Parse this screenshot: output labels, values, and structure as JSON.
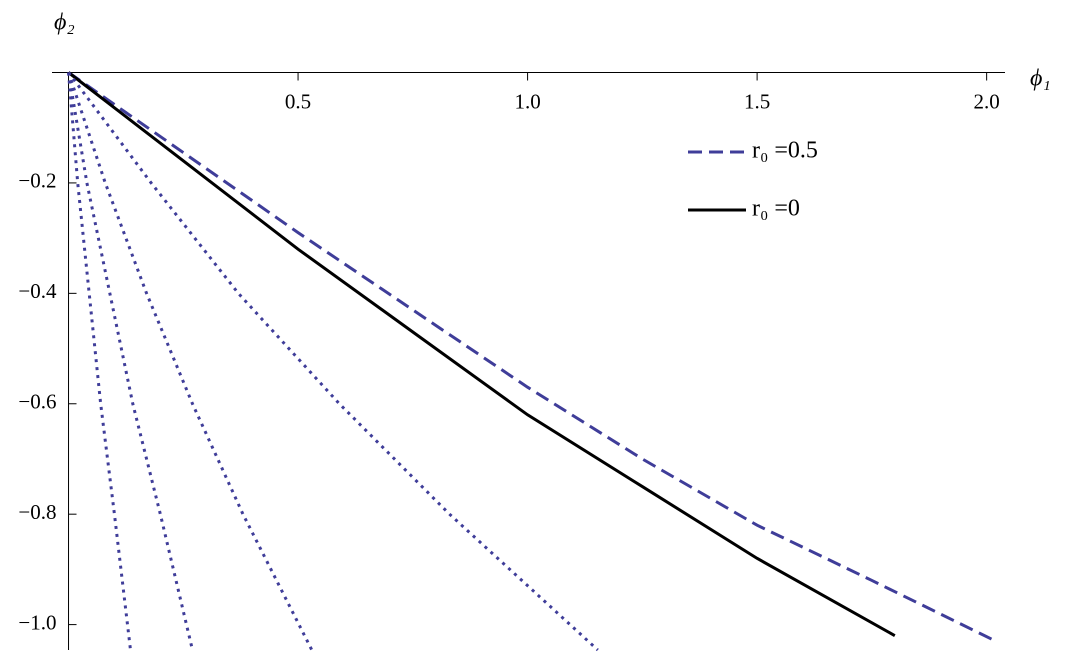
{
  "chart_data": {
    "type": "line",
    "xlabel": "ϕ₁",
    "ylabel": "ϕ₂",
    "xlim": [
      -0.036,
      2.04
    ],
    "ylim": [
      -1.046,
      0
    ],
    "xticks": [
      0.5,
      {
        "value": 1,
        "label": "1.0"
      },
      1.5,
      {
        "value": 2,
        "label": "2.0"
      }
    ],
    "yticks": [
      {
        "value": -0.2,
        "label": "−0.2"
      },
      {
        "value": -0.4,
        "label": "−0.4"
      },
      {
        "value": -0.6,
        "label": "−0.6"
      },
      {
        "value": -0.8,
        "label": "−0.8"
      },
      {
        "value": -1,
        "label": "−1.0"
      }
    ],
    "legend": "upper right",
    "series": [
      {
        "name": "r₀ =0.5",
        "color": "#3f3d99",
        "dash": "dashed",
        "x": [
          0,
          0.25,
          0.5,
          0.75,
          1.0,
          1.25,
          1.5,
          1.75,
          2.02
        ],
        "values": [
          0,
          -0.145,
          -0.29,
          -0.43,
          -0.57,
          -0.7,
          -0.82,
          -0.92,
          -1.03
        ]
      },
      {
        "name": "r₀ =0",
        "color": "#000000",
        "dash": "solid",
        "x": [
          0,
          0.25,
          0.5,
          0.75,
          1.0,
          1.25,
          1.5,
          1.8
        ],
        "values": [
          0,
          -0.16,
          -0.32,
          -0.47,
          -0.62,
          -0.75,
          -0.88,
          -1.02
        ]
      },
      {
        "color": "#3f3d99",
        "dash": "dotted",
        "x": [
          0,
          0.18,
          0.37,
          0.59,
          0.83,
          1.153
        ],
        "values": [
          0,
          -0.2,
          -0.4,
          -0.6,
          -0.8,
          -1.046
        ]
      },
      {
        "color": "#3f3d99",
        "dash": "dotted",
        "x": [
          0,
          0.08,
          0.17,
          0.27,
          0.38,
          0.53
        ],
        "values": [
          0,
          -0.2,
          -0.4,
          -0.6,
          -0.8,
          -1.046
        ]
      },
      {
        "color": "#3f3d99",
        "dash": "dotted",
        "x": [
          0,
          0.04,
          0.09,
          0.14,
          0.2,
          0.27
        ],
        "values": [
          0,
          -0.2,
          -0.4,
          -0.6,
          -0.8,
          -1.046
        ]
      },
      {
        "color": "#3f3d99",
        "dash": "dotted",
        "x": [
          0,
          0.02,
          0.045,
          0.07,
          0.1,
          0.135
        ],
        "values": [
          0,
          -0.2,
          -0.4,
          -0.6,
          -0.8,
          -1.046
        ]
      }
    ]
  }
}
